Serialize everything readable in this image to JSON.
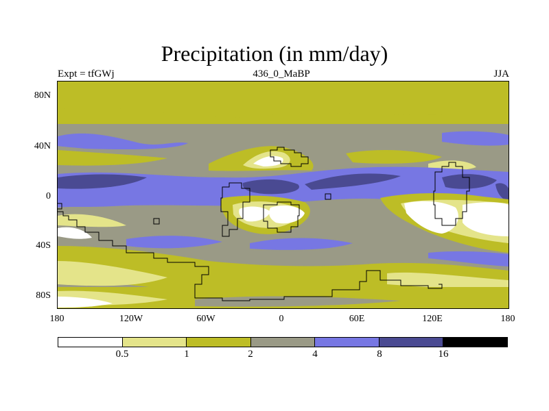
{
  "title": "Precipitation (in mm/day)",
  "subtitle_left": "Expt = tfGWj",
  "subtitle_center": "436_0_MaBP",
  "subtitle_right": "JJA",
  "latitude_labels": [
    "80N",
    "40N",
    "0",
    "40S",
    "80S"
  ],
  "longitude_labels": [
    "180",
    "120W",
    "60W",
    "0",
    "60E",
    "120E",
    "180"
  ],
  "colorbar": {
    "levels": [
      "0.5",
      "1",
      "2",
      "4",
      "8",
      "16"
    ],
    "colors": [
      "#ffffff",
      "#e4e48a",
      "#bdbd26",
      "#9a9a86",
      "#7777e3",
      "#4a4a92",
      "#000000"
    ]
  },
  "palette": {
    "white": "#ffffff",
    "pale_yellow": "#e4e48a",
    "olive": "#bdbd26",
    "gray": "#9a9a86",
    "periwinkle": "#7777e3",
    "navy": "#4a4a92",
    "coastline": "#000000"
  }
}
